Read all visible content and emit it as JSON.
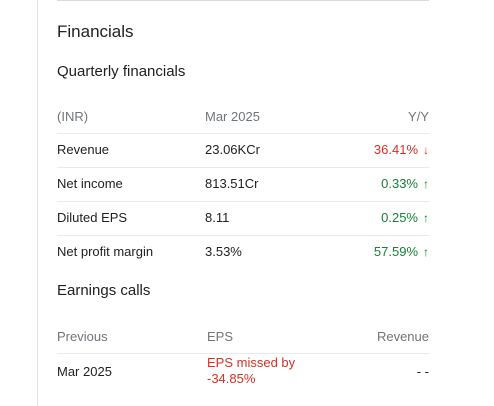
{
  "financials": {
    "section_title": "Financials",
    "sub_title": "Quarterly financials",
    "header": {
      "col1": "(INR)",
      "col2": "Mar 2025",
      "col3": "Y/Y"
    },
    "rows": [
      {
        "label": "Revenue",
        "value": "23.06KCr",
        "change": "36.41%",
        "direction": "down",
        "arrow": "↓"
      },
      {
        "label": "Net income",
        "value": "813.51Cr",
        "change": "0.33%",
        "direction": "up",
        "arrow": "↑"
      },
      {
        "label": "Diluted EPS",
        "value": "8.11",
        "change": "0.25%",
        "direction": "up",
        "arrow": "↑"
      },
      {
        "label": "Net profit margin",
        "value": "3.53%",
        "change": "57.59%",
        "direction": "up",
        "arrow": "↑"
      }
    ]
  },
  "earnings": {
    "title": "Earnings calls",
    "header": {
      "col1": "Previous",
      "col2": "EPS",
      "col3": "Revenue"
    },
    "row": {
      "period": "Mar 2025",
      "eps_line1": "EPS missed by",
      "eps_line2": "-34.85%",
      "revenue": "- -"
    }
  },
  "colors": {
    "negative": "#d93025",
    "positive": "#188038",
    "muted": "#70757a"
  }
}
